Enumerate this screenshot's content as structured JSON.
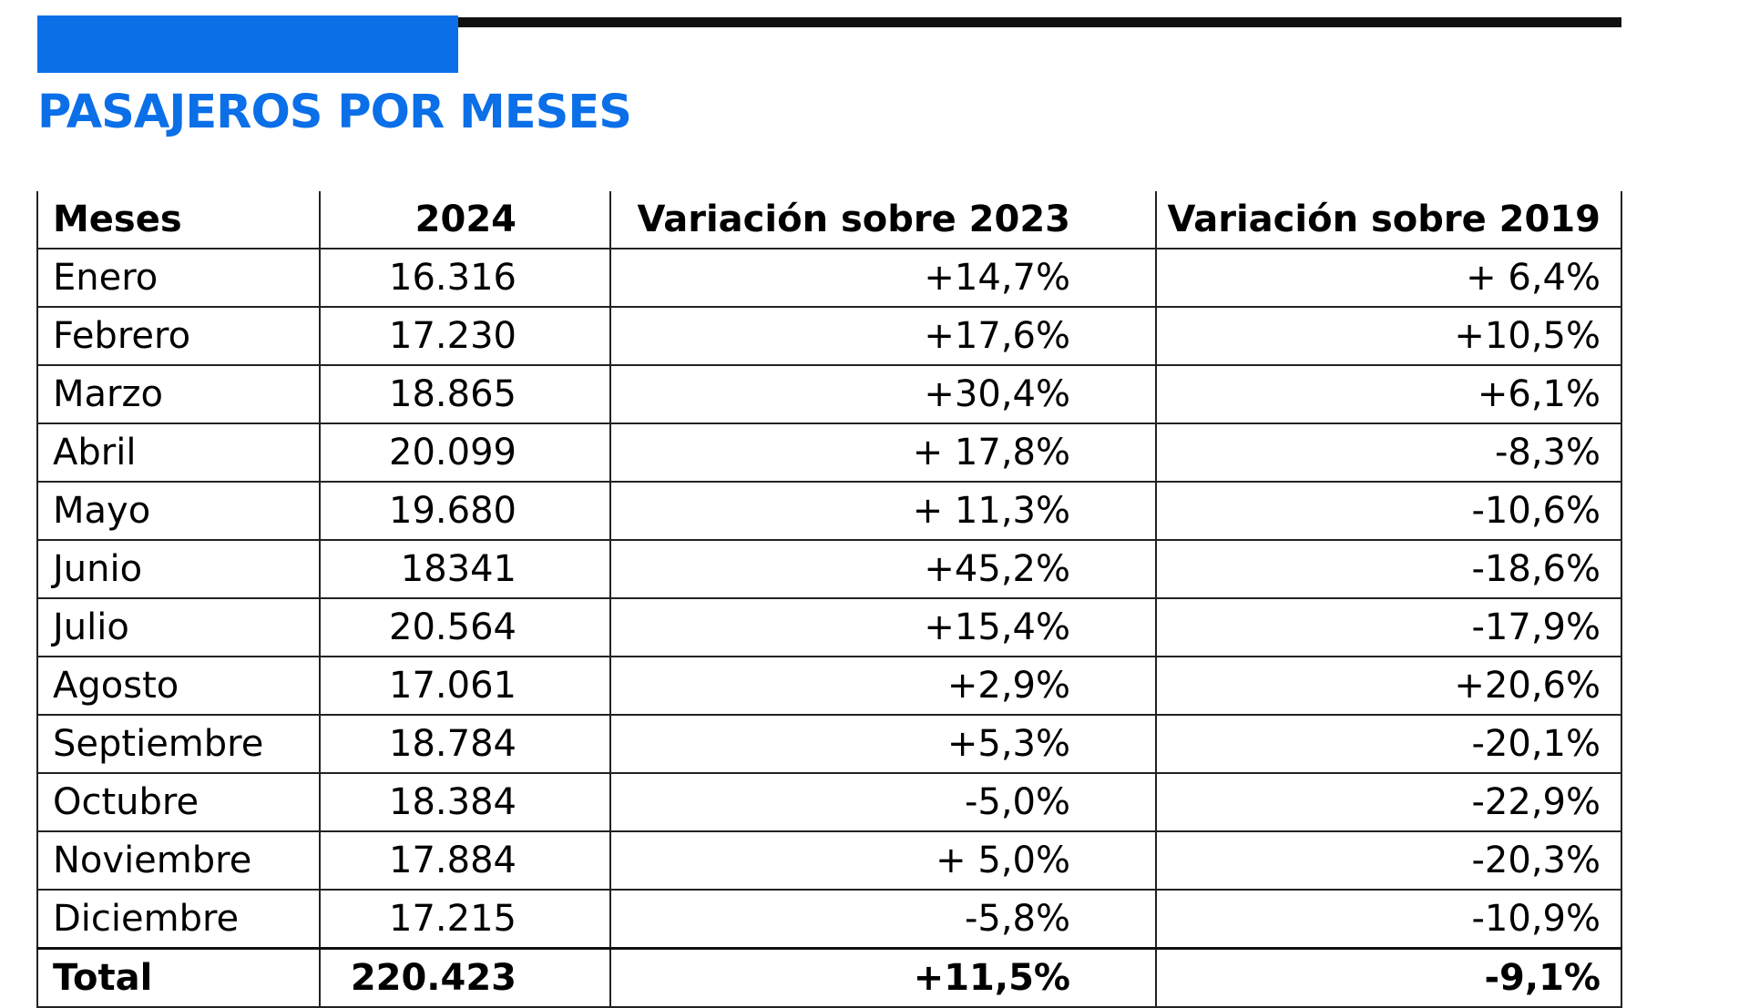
{
  "colors": {
    "accent": "#0b6fe8",
    "rule": "#111111",
    "grid": "#222222"
  },
  "chart_data": {
    "type": "table",
    "title": "PASAJEROS POR MESES",
    "columns": [
      "Meses",
      "2024",
      "Variación sobre 2023",
      "Variación sobre 2019"
    ],
    "rows": [
      {
        "mes": "Enero",
        "valor": "16.316",
        "var_2023": "+14,7%",
        "var_2019": "+ 6,4%"
      },
      {
        "mes": "Febrero",
        "valor": "17.230",
        "var_2023": "+17,6%",
        "var_2019": "+10,5%"
      },
      {
        "mes": "Marzo",
        "valor": "18.865",
        "var_2023": "+30,4%",
        "var_2019": "+6,1%"
      },
      {
        "mes": "Abril",
        "valor": "20.099",
        "var_2023": "+ 17,8%",
        "var_2019": "-8,3%"
      },
      {
        "mes": "Mayo",
        "valor": "19.680",
        "var_2023": "+ 11,3%",
        "var_2019": "-10,6%"
      },
      {
        "mes": "Junio",
        "valor": "18341",
        "var_2023": "+45,2%",
        "var_2019": "-18,6%"
      },
      {
        "mes": "Julio",
        "valor": "20.564",
        "var_2023": "+15,4%",
        "var_2019": "-17,9%"
      },
      {
        "mes": "Agosto",
        "valor": "17.061",
        "var_2023": "+2,9%",
        "var_2019": "+20,6%"
      },
      {
        "mes": "Septiembre",
        "valor": "18.784",
        "var_2023": "+5,3%",
        "var_2019": "-20,1%"
      },
      {
        "mes": "Octubre",
        "valor": "18.384",
        "var_2023": "-5,0%",
        "var_2019": "-22,9%"
      },
      {
        "mes": "Noviembre",
        "valor": "17.884",
        "var_2023": "+ 5,0%",
        "var_2019": "-20,3%"
      },
      {
        "mes": "Diciembre",
        "valor": "17.215",
        "var_2023": "-5,8%",
        "var_2019": "-10,9%"
      }
    ],
    "total": {
      "mes": "Total",
      "valor": "220.423",
      "var_2023": "+11,5%",
      "var_2019": "-9,1%"
    }
  }
}
